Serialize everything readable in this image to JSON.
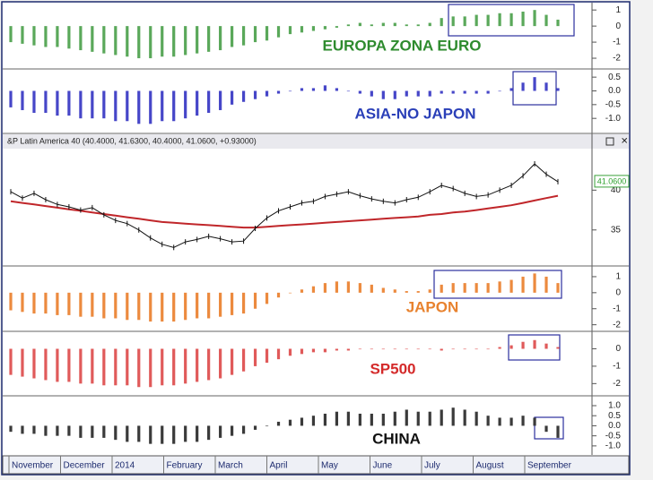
{
  "chart_data": [
    {
      "type": "bar",
      "title": "EUROPA ZONA EURO",
      "color": "#5aa85a",
      "title_color": "#2e8b2e",
      "values": [
        -1.0,
        -1.1,
        -1.2,
        -1.3,
        -1.3,
        -1.4,
        -1.5,
        -1.6,
        -1.7,
        -1.8,
        -1.9,
        -2.0,
        -2.0,
        -1.9,
        -1.9,
        -1.8,
        -1.7,
        -1.6,
        -1.5,
        -1.3,
        -1.2,
        -1.0,
        -0.9,
        -0.7,
        -0.5,
        -0.4,
        -0.3,
        -0.2,
        -0.1,
        0.1,
        0.2,
        0.1,
        0.2,
        0.2,
        0.1,
        0.1,
        0.2,
        0.5,
        0.6,
        0.6,
        0.7,
        0.7,
        0.8,
        0.8,
        0.9,
        1.0,
        0.7,
        0.4
      ],
      "ylim": [
        -2.5,
        1.4
      ],
      "yticks": [
        1,
        0,
        -1,
        -2
      ]
    },
    {
      "type": "bar",
      "title": "ASIA-NO JAPON",
      "color": "#4646c8",
      "title_color": "#2a3fb8",
      "values": [
        -0.6,
        -0.7,
        -0.8,
        -0.8,
        -0.9,
        -0.9,
        -1.0,
        -1.0,
        -1.0,
        -1.1,
        -1.1,
        -1.2,
        -1.2,
        -1.1,
        -1.1,
        -1.0,
        -0.9,
        -0.8,
        -0.7,
        -0.5,
        -0.4,
        -0.3,
        -0.2,
        -0.1,
        0.0,
        0.1,
        0.1,
        0.2,
        0.1,
        0.0,
        -0.1,
        -0.2,
        -0.3,
        -0.3,
        -0.2,
        -0.2,
        -0.2,
        -0.1,
        -0.1,
        -0.1,
        -0.1,
        -0.1,
        0.0,
        0.1,
        0.3,
        0.5,
        0.3,
        0.1
      ],
      "ylim": [
        -1.45,
        0.7
      ],
      "yticks": [
        0.5,
        {
          "value": 0,
          "label": "0.0"
        },
        -0.5,
        {
          "value": -1,
          "label": "-1.0"
        }
      ]
    },
    {
      "type": "line",
      "title": "&P Latin America 40 (40.4000, 41.6300, 40.4000, 41.0600, +0.93000)",
      "color": "#111111",
      "ma_color": "#c0262a",
      "values": [
        39.8,
        39.0,
        39.6,
        38.8,
        38.2,
        37.9,
        37.5,
        37.8,
        36.9,
        36.2,
        35.8,
        35.0,
        34.0,
        33.2,
        32.8,
        33.5,
        33.8,
        34.2,
        33.9,
        33.5,
        33.6,
        35.2,
        36.5,
        37.4,
        37.9,
        38.4,
        38.6,
        39.2,
        39.5,
        39.8,
        39.3,
        38.9,
        38.6,
        38.4,
        38.8,
        39.1,
        39.8,
        40.6,
        40.2,
        39.6,
        39.2,
        39.4,
        40.0,
        40.6,
        41.8,
        43.3,
        42.0,
        41.06
      ],
      "moving_average": [
        38.6,
        38.4,
        38.2,
        38.0,
        37.8,
        37.6,
        37.4,
        37.2,
        37.0,
        36.8,
        36.6,
        36.4,
        36.2,
        36.0,
        35.9,
        35.8,
        35.7,
        35.6,
        35.5,
        35.4,
        35.3,
        35.3,
        35.4,
        35.5,
        35.6,
        35.7,
        35.8,
        35.9,
        36.0,
        36.1,
        36.2,
        36.3,
        36.4,
        36.5,
        36.6,
        36.7,
        36.9,
        37.0,
        37.2,
        37.3,
        37.5,
        37.7,
        37.9,
        38.1,
        38.4,
        38.7,
        39.0,
        39.3
      ],
      "last_label": "41.0600",
      "ylim": [
        30.7,
        45.1
      ],
      "yticks": [
        40,
        35
      ]
    },
    {
      "type": "bar",
      "title": "JAPON",
      "color": "#ec8a3e",
      "title_color": "#e8822e",
      "values": [
        -1.1,
        -1.2,
        -1.3,
        -1.3,
        -1.4,
        -1.4,
        -1.5,
        -1.5,
        -1.6,
        -1.6,
        -1.7,
        -1.7,
        -1.8,
        -1.8,
        -1.8,
        -1.7,
        -1.6,
        -1.6,
        -1.5,
        -1.4,
        -1.3,
        -1.0,
        -0.7,
        -0.3,
        0.0,
        0.2,
        0.4,
        0.6,
        0.7,
        0.7,
        0.6,
        0.5,
        0.3,
        0.2,
        0.1,
        0.1,
        0.2,
        0.5,
        0.6,
        0.6,
        0.6,
        0.6,
        0.7,
        0.8,
        1.0,
        1.2,
        1.0,
        0.6
      ],
      "ylim": [
        -2.3,
        1.5
      ],
      "yticks": [
        1,
        0,
        -1,
        -2
      ]
    },
    {
      "type": "bar",
      "title": "SP500",
      "color": "#e05a5a",
      "title_color": "#d42a2a",
      "values": [
        -1.5,
        -1.6,
        -1.7,
        -1.8,
        -1.9,
        -1.9,
        -2.0,
        -2.0,
        -2.1,
        -2.1,
        -2.1,
        -2.2,
        -2.2,
        -2.1,
        -2.1,
        -2.0,
        -1.9,
        -1.8,
        -1.7,
        -1.5,
        -1.3,
        -1.0,
        -0.8,
        -0.6,
        -0.4,
        -0.3,
        -0.2,
        -0.2,
        -0.1,
        -0.1,
        0.0,
        0.0,
        0.0,
        0.0,
        0.0,
        0.0,
        0.0,
        -0.1,
        0.0,
        0.0,
        0.0,
        0.0,
        0.1,
        0.2,
        0.4,
        0.5,
        0.3,
        0.1
      ],
      "ylim": [
        -2.6,
        0.9
      ],
      "yticks": [
        0,
        -1,
        -2
      ]
    },
    {
      "type": "bar",
      "title": "CHINA",
      "color": "#3a3a3a",
      "title_color": "#111111",
      "values": [
        -0.3,
        -0.4,
        -0.4,
        -0.5,
        -0.5,
        -0.5,
        -0.6,
        -0.6,
        -0.6,
        -0.7,
        -0.8,
        -0.8,
        -0.9,
        -0.9,
        -0.9,
        -0.8,
        -0.8,
        -0.7,
        -0.6,
        -0.5,
        -0.4,
        -0.2,
        0.0,
        0.2,
        0.3,
        0.4,
        0.5,
        0.6,
        0.7,
        0.7,
        0.6,
        0.6,
        0.6,
        0.7,
        0.8,
        0.7,
        0.7,
        0.8,
        0.9,
        0.8,
        0.7,
        0.5,
        0.4,
        0.4,
        0.5,
        0.4,
        -0.3,
        -0.6
      ],
      "ylim": [
        -1.45,
        1.4
      ],
      "yticks": [
        {
          "value": 1,
          "label": "1.0"
        },
        0.5,
        {
          "value": 0,
          "label": "0.0"
        },
        -0.5,
        {
          "value": -1,
          "label": "-1.0"
        }
      ]
    }
  ],
  "x_labels": [
    "November",
    "December",
    "2014",
    "February",
    "March",
    "April",
    "May",
    "June",
    "July",
    "August",
    "September"
  ]
}
